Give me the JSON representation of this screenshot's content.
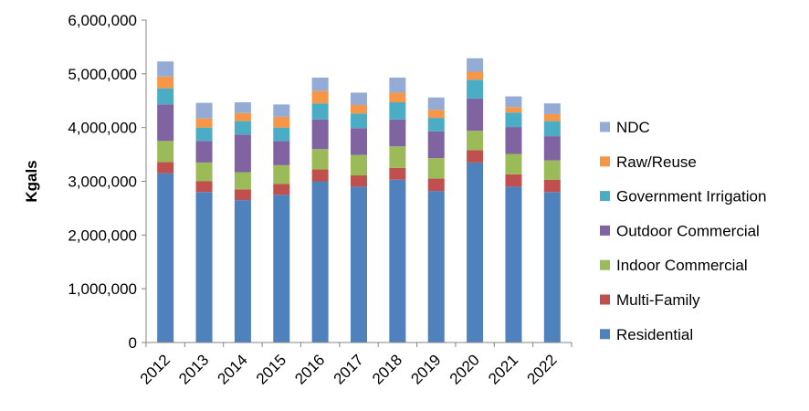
{
  "chart_data": {
    "type": "bar",
    "stacked": true,
    "title": "",
    "xlabel": "",
    "ylabel": "Kgals",
    "ylim": [
      0,
      6000000
    ],
    "yticks": [
      0,
      1000000,
      2000000,
      3000000,
      4000000,
      5000000,
      6000000
    ],
    "ytick_labels": [
      "0",
      "1,000,000",
      "2,000,000",
      "3,000,000",
      "4,000,000",
      "5,000,000",
      "6,000,000"
    ],
    "categories": [
      "2012",
      "2013",
      "2014",
      "2015",
      "2016",
      "2017",
      "2018",
      "2019",
      "2020",
      "2021",
      "2022"
    ],
    "legend_position": "right",
    "grid": false,
    "series": [
      {
        "name": "Residential",
        "color": "#4F81BD",
        "values": [
          3150000,
          2800000,
          2650000,
          2750000,
          3000000,
          2900000,
          3030000,
          2820000,
          3350000,
          2900000,
          2800000
        ]
      },
      {
        "name": "Multi-Family",
        "color": "#C0504D",
        "values": [
          210000,
          200000,
          200000,
          200000,
          220000,
          210000,
          220000,
          230000,
          230000,
          230000,
          230000
        ]
      },
      {
        "name": "Indoor Commercial",
        "color": "#9BBB59",
        "values": [
          390000,
          350000,
          320000,
          350000,
          380000,
          380000,
          400000,
          380000,
          360000,
          380000,
          360000
        ]
      },
      {
        "name": "Outdoor Commercial",
        "color": "#8064A2",
        "values": [
          680000,
          400000,
          700000,
          450000,
          550000,
          500000,
          500000,
          500000,
          600000,
          500000,
          450000
        ]
      },
      {
        "name": "Government Irrigation",
        "color": "#4BACC6",
        "values": [
          300000,
          250000,
          250000,
          250000,
          300000,
          270000,
          320000,
          250000,
          350000,
          270000,
          280000
        ]
      },
      {
        "name": "Raw/Reuse",
        "color": "#F79646",
        "values": [
          220000,
          170000,
          150000,
          200000,
          230000,
          160000,
          180000,
          150000,
          150000,
          100000,
          130000
        ]
      },
      {
        "name": "NDC",
        "color": "#94ACD5",
        "values": [
          280000,
          290000,
          200000,
          230000,
          250000,
          230000,
          280000,
          230000,
          250000,
          200000,
          200000
        ]
      }
    ]
  }
}
